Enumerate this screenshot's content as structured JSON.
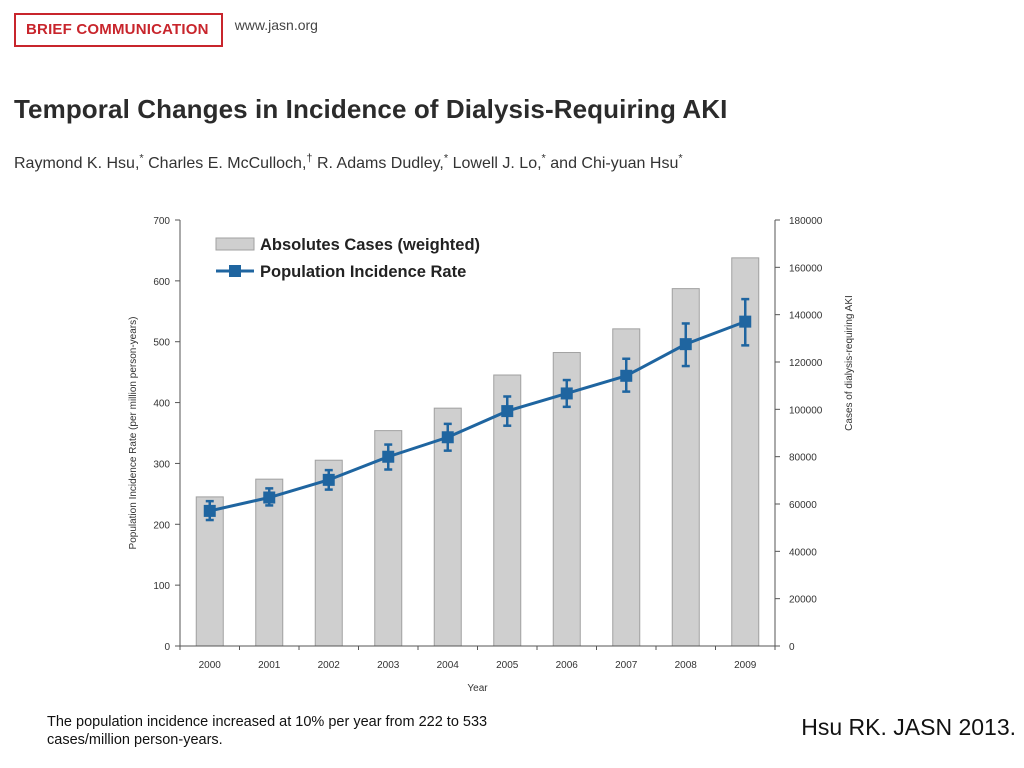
{
  "header": {
    "badge": "BRIEF COMMUNICATION",
    "site": "www.jasn.org"
  },
  "paper": {
    "title": "Temporal Changes in Incidence of Dialysis-Requiring AKI",
    "authors": [
      {
        "name": "Raymond K. Hsu,",
        "mark": "*"
      },
      {
        "name": "Charles E. McCulloch,",
        "mark": "†"
      },
      {
        "name": "R. Adams Dudley,",
        "mark": "*"
      },
      {
        "name": "Lowell J. Lo,",
        "mark": "*"
      },
      {
        "name": "and Chi-yuan Hsu",
        "mark": "*"
      }
    ]
  },
  "caption": "The population incidence increased at 10% per year from 222 to 533 cases/million person-years.",
  "citation": "Hsu RK. JASN 2013.",
  "colors": {
    "bar_fill": "#cfcfcf",
    "bar_stroke": "#a0a0a0",
    "line": "#1f65a0",
    "badge": "#c8252c"
  },
  "chart_data": {
    "type": "bar",
    "categories": [
      "2000",
      "2001",
      "2002",
      "2003",
      "2004",
      "2005",
      "2006",
      "2007",
      "2008",
      "2009"
    ],
    "xlabel": "Year",
    "ylabel": "Population Incidence Rate (per million person-years)",
    "y2label": "Cases of dialysis-requiring AKI",
    "ylim": [
      0,
      700
    ],
    "y2lim": [
      0,
      180000
    ],
    "yticks": [
      "0",
      "100",
      "200",
      "300",
      "400",
      "500",
      "600",
      "700"
    ],
    "y2ticks": [
      "0",
      "20000",
      "40000",
      "60000",
      "80000",
      "100000",
      "120000",
      "140000",
      "160000",
      "180000"
    ],
    "legend": {
      "position": "top-left",
      "bar_label": "Absolutes Cases (weighted)",
      "line_label": "Population Incidence Rate"
    },
    "series": [
      {
        "name": "Absolutes Cases (weighted)",
        "type": "bar",
        "axis": "right",
        "values": [
          63000,
          70500,
          78500,
          91000,
          100500,
          114500,
          124000,
          134000,
          151000,
          164000
        ]
      },
      {
        "name": "Population Incidence Rate",
        "type": "line",
        "axis": "left",
        "values": [
          222,
          244,
          273,
          311,
          343,
          386,
          415,
          444,
          496,
          533
        ],
        "error_low": [
          207,
          231,
          257,
          290,
          321,
          362,
          393,
          418,
          460,
          494
        ],
        "error_high": [
          238,
          259,
          289,
          331,
          365,
          410,
          437,
          472,
          530,
          570
        ]
      }
    ]
  }
}
